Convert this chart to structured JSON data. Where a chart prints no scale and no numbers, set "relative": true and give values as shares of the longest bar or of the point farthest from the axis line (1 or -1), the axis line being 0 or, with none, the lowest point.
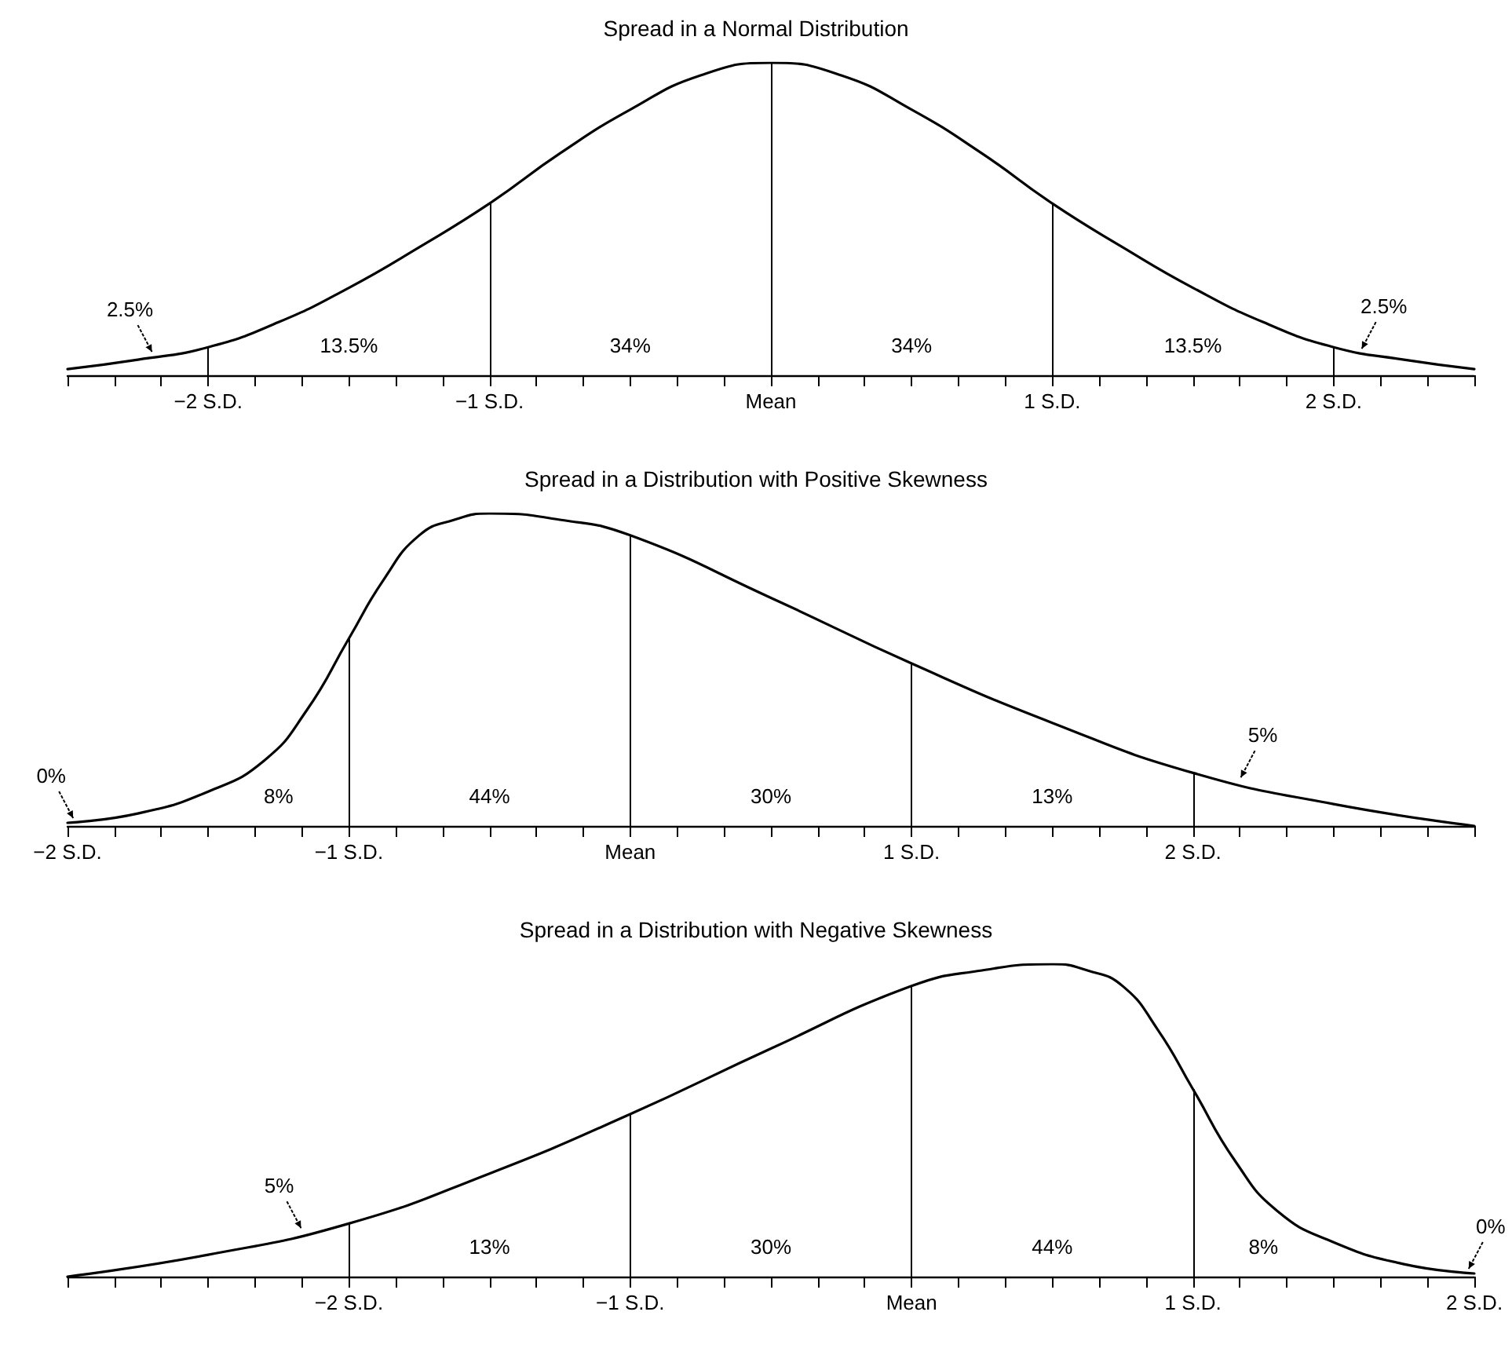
{
  "chart_data": [
    {
      "type": "line",
      "title": "Spread in a Normal Distribution",
      "relative": true,
      "marker": "none",
      "line_style": "solid",
      "grid": false,
      "x": [
        -2.5,
        -2.25,
        -2,
        -1.75,
        -1.5,
        -1.25,
        -1,
        -0.75,
        -0.5,
        -0.25,
        0,
        0.25,
        0.5,
        0.75,
        1,
        1.25,
        1.5,
        1.75,
        2,
        2.25,
        2.5
      ],
      "series": [
        {
          "color": "#000000",
          "values": [
            0.02,
            0.05,
            0.09,
            0.17,
            0.28,
            0.41,
            0.55,
            0.71,
            0.85,
            0.96,
            1,
            0.96,
            0.85,
            0.71,
            0.55,
            0.41,
            0.28,
            0.17,
            0.09,
            0.05,
            0.02
          ]
        }
      ],
      "xlim": [
        -2.5,
        2.5
      ],
      "xticks": [
        {
          "value": -2.5,
          "label": null
        },
        {
          "value": -2.3333,
          "label": null
        },
        {
          "value": -2.1667,
          "label": null
        },
        {
          "value": -2,
          "label": "−2 S.D."
        },
        {
          "value": -1.8333,
          "label": null
        },
        {
          "value": -1.6667,
          "label": null
        },
        {
          "value": -1.5,
          "label": null
        },
        {
          "value": -1.3333,
          "label": null
        },
        {
          "value": -1.1667,
          "label": null
        },
        {
          "value": -1,
          "label": "−1 S.D."
        },
        {
          "value": -0.8333,
          "label": null
        },
        {
          "value": -0.6667,
          "label": null
        },
        {
          "value": -0.5,
          "label": null
        },
        {
          "value": -0.3333,
          "label": null
        },
        {
          "value": -0.1667,
          "label": null
        },
        {
          "value": 0,
          "label": "Mean"
        },
        {
          "value": 0.1667,
          "label": null
        },
        {
          "value": 0.3333,
          "label": null
        },
        {
          "value": 0.5,
          "label": null
        },
        {
          "value": 0.6667,
          "label": null
        },
        {
          "value": 0.8333,
          "label": null
        },
        {
          "value": 1,
          "label": "1 S.D."
        },
        {
          "value": 1.1667,
          "label": null
        },
        {
          "value": 1.3333,
          "label": null
        },
        {
          "value": 1.5,
          "label": null
        },
        {
          "value": 1.6667,
          "label": null
        },
        {
          "value": 1.8333,
          "label": null
        },
        {
          "value": 2,
          "label": "2 S.D."
        },
        {
          "value": 2.1667,
          "label": null
        },
        {
          "value": 2.3333,
          "label": null
        },
        {
          "value": 2.5,
          "label": null
        }
      ],
      "ref_lines": [
        {
          "axis": "x",
          "value": -2,
          "label": null
        },
        {
          "axis": "x",
          "value": -1,
          "label": null
        },
        {
          "axis": "x",
          "value": 0,
          "label": null
        },
        {
          "axis": "x",
          "value": 1,
          "label": null
        },
        {
          "axis": "x",
          "value": 2,
          "label": null
        }
      ],
      "annotations": [
        {
          "text": "2.5%",
          "x": -2.2,
          "y": 0.06
        },
        "13.5%",
        "34%",
        "34%",
        "13.5%",
        {
          "text": "2.5%",
          "x": 2.1,
          "y": 0.07
        }
      ]
    },
    {
      "type": "line",
      "title": "Spread in a Distribution with Positive Skewness",
      "relative": true,
      "marker": "none",
      "line_style": "solid",
      "grid": false,
      "x": [
        -2,
        -1.75,
        -1.5,
        -1.3,
        -1.15,
        -1,
        -0.875,
        -0.75,
        -0.625,
        -0.5,
        -0.25,
        0,
        0.5,
        1,
        1.5,
        2,
        2.5,
        3
      ],
      "series": [
        {
          "color": "#000000",
          "values": [
            0.01,
            0.04,
            0.11,
            0.21,
            0.37,
            0.6,
            0.79,
            0.93,
            0.98,
            1,
            0.98,
            0.93,
            0.73,
            0.52,
            0.33,
            0.17,
            0.07,
            0
          ]
        }
      ],
      "xlim": [
        -2,
        3
      ],
      "xticks": [
        {
          "value": -2,
          "label": "−2 S.D."
        },
        {
          "value": -1.8333,
          "label": null
        },
        {
          "value": -1.6667,
          "label": null
        },
        {
          "value": -1.5,
          "label": null
        },
        {
          "value": -1.3333,
          "label": null
        },
        {
          "value": -1.1667,
          "label": null
        },
        {
          "value": -1,
          "label": "−1 S.D."
        },
        {
          "value": -0.8333,
          "label": null
        },
        {
          "value": -0.6667,
          "label": null
        },
        {
          "value": -0.5,
          "label": null
        },
        {
          "value": -0.3333,
          "label": null
        },
        {
          "value": -0.1667,
          "label": null
        },
        {
          "value": 0,
          "label": "Mean"
        },
        {
          "value": 0.1667,
          "label": null
        },
        {
          "value": 0.3333,
          "label": null
        },
        {
          "value": 0.5,
          "label": null
        },
        {
          "value": 0.6667,
          "label": null
        },
        {
          "value": 0.8333,
          "label": null
        },
        {
          "value": 1,
          "label": "1 S.D."
        },
        {
          "value": 1.1667,
          "label": null
        },
        {
          "value": 1.3333,
          "label": null
        },
        {
          "value": 1.5,
          "label": null
        },
        {
          "value": 1.6667,
          "label": null
        },
        {
          "value": 1.8333,
          "label": null
        },
        {
          "value": 2,
          "label": "2 S.D."
        },
        {
          "value": 2.1667,
          "label": null
        },
        {
          "value": 2.3333,
          "label": null
        },
        {
          "value": 2.5,
          "label": null
        },
        {
          "value": 2.6667,
          "label": null
        },
        {
          "value": 2.8333,
          "label": null
        },
        {
          "value": 3,
          "label": null
        }
      ],
      "ref_lines": [
        {
          "axis": "x",
          "value": -1,
          "label": null
        },
        {
          "axis": "x",
          "value": 0,
          "label": null
        },
        {
          "axis": "x",
          "value": 1,
          "label": null
        },
        {
          "axis": "x",
          "value": 2,
          "label": null
        }
      ],
      "annotations": [
        {
          "text": "0%",
          "x": -1.98,
          "y": 0.01
        },
        "8%",
        "44%",
        "30%",
        "13%",
        {
          "text": "5%",
          "x": 2.17,
          "y": 0.14
        }
      ]
    },
    {
      "type": "line",
      "title": "Spread in a Distribution with Negative Skewness",
      "relative": true,
      "marker": "none",
      "line_style": "solid",
      "grid": false,
      "x": [
        -3,
        -2.5,
        -2,
        -1.5,
        -1,
        -0.5,
        0,
        0.25,
        0.5,
        0.625,
        0.75,
        0.875,
        1,
        1.15,
        1.3,
        1.5,
        1.75,
        2
      ],
      "series": [
        {
          "color": "#000000",
          "values": [
            0,
            0.07,
            0.17,
            0.33,
            0.52,
            0.73,
            0.93,
            0.98,
            1,
            0.98,
            0.93,
            0.79,
            0.6,
            0.37,
            0.21,
            0.11,
            0.04,
            0.01
          ]
        }
      ],
      "xlim": [
        -3,
        2
      ],
      "xticks": [
        {
          "value": -3,
          "label": null
        },
        {
          "value": -2.8333,
          "label": null
        },
        {
          "value": -2.6667,
          "label": null
        },
        {
          "value": -2.5,
          "label": null
        },
        {
          "value": -2.3333,
          "label": null
        },
        {
          "value": -2.1667,
          "label": null
        },
        {
          "value": -2,
          "label": "−2 S.D."
        },
        {
          "value": -1.8333,
          "label": null
        },
        {
          "value": -1.6667,
          "label": null
        },
        {
          "value": -1.5,
          "label": null
        },
        {
          "value": -1.3333,
          "label": null
        },
        {
          "value": -1.1667,
          "label": null
        },
        {
          "value": -1,
          "label": "−1 S.D."
        },
        {
          "value": -0.8333,
          "label": null
        },
        {
          "value": -0.6667,
          "label": null
        },
        {
          "value": -0.5,
          "label": null
        },
        {
          "value": -0.3333,
          "label": null
        },
        {
          "value": -0.1667,
          "label": null
        },
        {
          "value": 0,
          "label": "Mean"
        },
        {
          "value": 0.1667,
          "label": null
        },
        {
          "value": 0.3333,
          "label": null
        },
        {
          "value": 0.5,
          "label": null
        },
        {
          "value": 0.6667,
          "label": null
        },
        {
          "value": 0.8333,
          "label": null
        },
        {
          "value": 1,
          "label": "1 S.D."
        },
        {
          "value": 1.1667,
          "label": null
        },
        {
          "value": 1.3333,
          "label": null
        },
        {
          "value": 1.5,
          "label": null
        },
        {
          "value": 1.6667,
          "label": null
        },
        {
          "value": 1.8333,
          "label": null
        },
        {
          "value": 2,
          "label": "2 S.D."
        }
      ],
      "ref_lines": [
        {
          "axis": "x",
          "value": -2,
          "label": null
        },
        {
          "axis": "x",
          "value": -1,
          "label": null
        },
        {
          "axis": "x",
          "value": 0,
          "label": null
        },
        {
          "axis": "x",
          "value": 1,
          "label": null
        }
      ],
      "annotations": [
        {
          "text": "5%",
          "x": -2.17,
          "y": 0.14
        },
        "13%",
        "30%",
        "44%",
        "8%",
        {
          "text": "0%",
          "x": 1.98,
          "y": 0.01
        }
      ]
    }
  ]
}
